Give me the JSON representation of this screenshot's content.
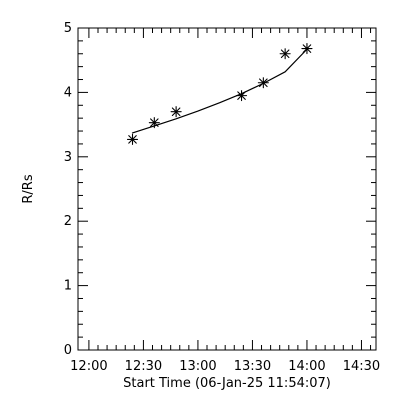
{
  "chart_data": {
    "type": "scatter",
    "title": "",
    "xlabel": "Start Time (06-Jan-25 11:54:07)",
    "ylabel": "R/Rs",
    "xlim": [
      "11:54",
      "14:38"
    ],
    "ylim": [
      0,
      5
    ],
    "grid": false,
    "x_ticks": [
      "12:00",
      "12:30",
      "13:00",
      "13:30",
      "14:00",
      "14:30"
    ],
    "y_ticks": [
      "0",
      "1",
      "2",
      "3",
      "4",
      "5"
    ],
    "series": [
      {
        "marker": "asterisk",
        "x": [
          "12:24",
          "12:36",
          "12:48",
          "13:24",
          "13:36",
          "13:48",
          "14:00"
        ],
        "y": [
          3.27,
          3.53,
          3.7,
          3.95,
          4.15,
          4.6,
          4.68
        ]
      }
    ],
    "fit_line": {
      "x": [
        "12:24",
        "12:36",
        "12:48",
        "13:00",
        "13:12",
        "13:24",
        "13:36",
        "13:48",
        "14:00"
      ],
      "y": [
        3.37,
        3.48,
        3.59,
        3.71,
        3.84,
        3.98,
        4.14,
        4.32,
        4.67
      ]
    },
    "colors": {
      "axis": "#000000",
      "marker": "#000000",
      "line": "#000000",
      "background": "#ffffff"
    }
  }
}
